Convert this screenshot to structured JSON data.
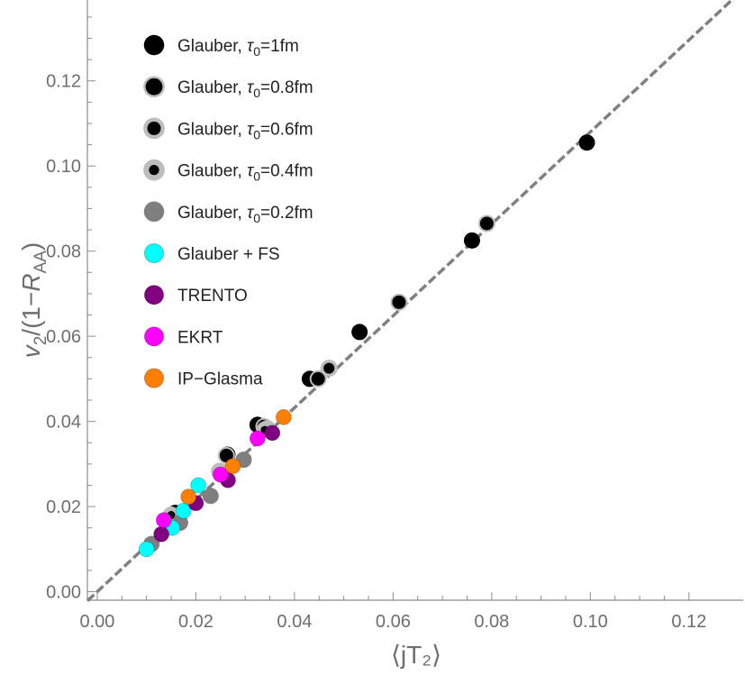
{
  "chart_data": {
    "type": "scatter",
    "xlabel": "⟨jT₂⟩",
    "ylabel_parts": [
      "v",
      "2",
      "/(1−",
      "R",
      "AA",
      ")"
    ],
    "xlim": [
      -0.002,
      0.131
    ],
    "ylim": [
      -0.002,
      0.139
    ],
    "xticks": [
      "0.00",
      "0.02",
      "0.04",
      "0.06",
      "0.08",
      "0.10",
      "0.12"
    ],
    "yticks": [
      "0.00",
      "0.02",
      "0.04",
      "0.06",
      "0.08",
      "0.10",
      "0.12"
    ],
    "grid": false,
    "legend_position": "top-left",
    "reference_line": {
      "slope": 1.08,
      "intercept": 0.0,
      "style": "dashed",
      "color": "#808080"
    },
    "series": [
      {
        "name": "Glauber, τ0=1fm",
        "label_prefix": "Glauber, ",
        "tau": "τ",
        "sub": "0",
        "label_value": "=1fm",
        "style": "black",
        "x": [
          0.0993,
          0.076,
          0.0532,
          0.0431,
          0.0325,
          0.0264,
          0.0158
        ],
        "y": [
          0.1055,
          0.0825,
          0.061,
          0.05,
          0.0392,
          0.0322,
          0.0185
        ]
      },
      {
        "name": "Glauber, τ0=0.8fm",
        "label_prefix": "Glauber, ",
        "tau": "τ",
        "sub": "0",
        "label_value": "=0.8fm",
        "style": "ring-thin",
        "x": [
          0.079,
          0.0612,
          0.0448,
          0.0338,
          0.0262
        ],
        "y": [
          0.0865,
          0.068,
          0.05,
          0.0388,
          0.032
        ]
      },
      {
        "name": "Glauber, τ0=0.6fm",
        "label_prefix": "Glauber, ",
        "tau": "τ",
        "sub": "0",
        "label_value": "=0.6fm",
        "style": "ring-medium",
        "x": [
          0.047,
          0.0345,
          0.0248
        ],
        "y": [
          0.0525,
          0.0383,
          0.0283
        ]
      },
      {
        "name": "Glauber, τ0=0.4fm",
        "label_prefix": "Glauber, ",
        "tau": "τ",
        "sub": "0",
        "label_value": "=0.4fm",
        "style": "ring-thick",
        "x": [
          0.034,
          0.025,
          0.015
        ],
        "y": [
          0.038,
          0.028,
          0.018
        ]
      },
      {
        "name": "Glauber, τ0=0.2fm",
        "label_prefix": "Glauber, ",
        "tau": "τ",
        "sub": "0",
        "label_value": "=0.2fm",
        "style": "gray",
        "x": [
          0.0297,
          0.023,
          0.0168,
          0.011
        ],
        "y": [
          0.031,
          0.0225,
          0.0162,
          0.0112
        ]
      },
      {
        "name": "Glauber + FS",
        "label": "Glauber + FS",
        "color": "#00ffff",
        "x": [
          0.01,
          0.0152,
          0.0175,
          0.0205
        ],
        "y": [
          0.01,
          0.015,
          0.019,
          0.025
        ]
      },
      {
        "name": "TRENTO",
        "label": "TRENTO",
        "color": "#800080",
        "x": [
          0.013,
          0.02,
          0.0265,
          0.0355
        ],
        "y": [
          0.0135,
          0.0208,
          0.0262,
          0.0373
        ]
      },
      {
        "name": "EKRT",
        "label": "EKRT",
        "color": "#ff00ff",
        "x": [
          0.0135,
          0.025,
          0.0325
        ],
        "y": [
          0.0168,
          0.0275,
          0.036
        ]
      },
      {
        "name": "IP-Glasma",
        "label": "IP−Glasma",
        "color": "#ff8000",
        "x": [
          0.0185,
          0.0275,
          0.0378
        ],
        "y": [
          0.0223,
          0.0295,
          0.041
        ]
      }
    ]
  }
}
